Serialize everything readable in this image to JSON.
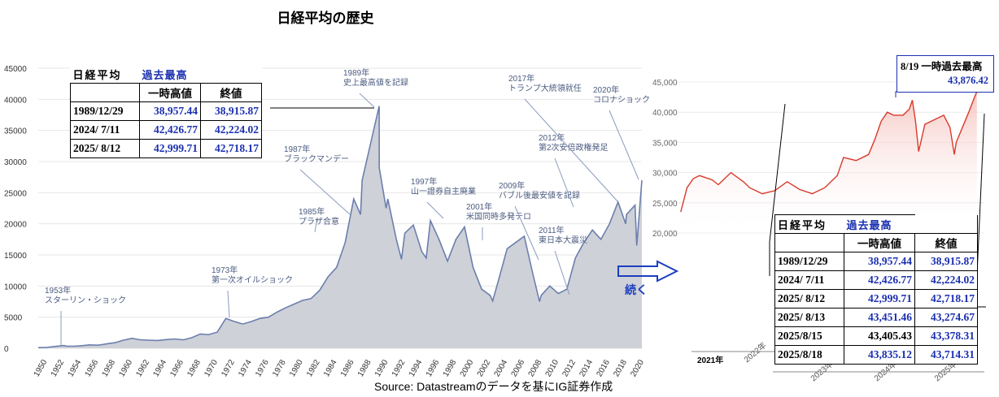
{
  "title": "日経平均の歴史",
  "source": "Source: Datastreamのデータを基にIG証券作成",
  "arrow_label": "続く",
  "callout": {
    "line1": "8/19 一時過去最高",
    "line2": "43,876.42"
  },
  "colors": {
    "long_fill": "#cfd1d8",
    "long_line": "#6b7fad",
    "recent_line": "#d9392a",
    "table_blue": "#1a2fb0"
  },
  "table_left": {
    "title": "日経平均",
    "title_blue": "過去最高",
    "headers": [
      "一時高値",
      "終値"
    ],
    "rows": [
      {
        "date": "1989/12/29",
        "intraday": "38,957.44",
        "close": "38,915.87"
      },
      {
        "date": "2024/ 7/11",
        "intraday": "42,426.77",
        "close": "42,224.02"
      },
      {
        "date": "2025/ 8/12",
        "intraday": "42,999.71",
        "close": "42,718.17"
      }
    ]
  },
  "table_right": {
    "title": "日経平均",
    "title_blue": "過去最高",
    "headers": [
      "一時高値",
      "終値"
    ],
    "rows": [
      {
        "date": "1989/12/29",
        "intraday": "38,957.44",
        "close": "38,915.87"
      },
      {
        "date": "2024/ 7/11",
        "intraday": "42,426.77",
        "close": "42,224.02"
      },
      {
        "date": "2025/ 8/12",
        "intraday": "42,999.71",
        "close": "42,718.17"
      },
      {
        "date": "2025/ 8/13",
        "intraday": "43,451.46",
        "close": "43,274.67"
      },
      {
        "date": "2025/8/15",
        "intraday": "43,405.43",
        "close": "43,378.31"
      },
      {
        "date": "2025/8/18",
        "intraday": "43,835.12",
        "close": "43,714.31"
      }
    ]
  },
  "chart_data": [
    {
      "type": "area",
      "title": "日経平均の歴史",
      "xlim": [
        1950,
        2020.8
      ],
      "ylim": [
        0,
        45000
      ],
      "x_ticks": [
        1950,
        1952,
        1954,
        1956,
        1958,
        1960,
        1962,
        1964,
        1966,
        1968,
        1970,
        1972,
        1974,
        1976,
        1978,
        1980,
        1982,
        1984,
        1986,
        1988,
        1990,
        1992,
        1994,
        1996,
        1998,
        2000,
        2002,
        2004,
        2006,
        2008,
        2010,
        2012,
        2014,
        2016,
        2018,
        2020
      ],
      "y_ticks": [
        0,
        5000,
        10000,
        15000,
        20000,
        25000,
        30000,
        35000,
        40000,
        45000
      ],
      "x": [
        1950,
        1951,
        1952,
        1953,
        1953.3,
        1954,
        1955,
        1956,
        1957,
        1958,
        1959,
        1960,
        1961,
        1962,
        1963,
        1964,
        1965,
        1966,
        1967,
        1968,
        1969,
        1970,
        1971,
        1972,
        1973,
        1974,
        1975,
        1976,
        1977,
        1978,
        1979,
        1980,
        1981,
        1982,
        1983,
        1984,
        1985,
        1986,
        1987,
        1987.8,
        1988,
        1989,
        1989.99,
        1990,
        1990.8,
        1991,
        1992,
        1992.6,
        1993,
        1994,
        1995,
        1995.5,
        1996,
        1997,
        1998,
        1999,
        2000,
        2001,
        2002,
        2003,
        2003.3,
        2004,
        2005,
        2006,
        2007,
        2008,
        2008.8,
        2009,
        2010,
        2011,
        2012,
        2013,
        2014,
        2015,
        2016,
        2017,
        2018,
        2018.9,
        2019,
        2020,
        2020.2,
        2020.8
      ],
      "values": [
        100,
        150,
        300,
        450,
        350,
        320,
        400,
        550,
        500,
        700,
        900,
        1300,
        1600,
        1350,
        1300,
        1250,
        1400,
        1500,
        1350,
        1700,
        2300,
        2200,
        2600,
        4800,
        4300,
        3900,
        4300,
        4800,
        5000,
        5800,
        6500,
        7100,
        7700,
        8000,
        9300,
        11500,
        13000,
        17000,
        24000,
        21500,
        27000,
        33000,
        38915,
        29000,
        22500,
        24000,
        17500,
        14300,
        18500,
        19800,
        15500,
        14500,
        20500,
        17500,
        14000,
        17500,
        19500,
        13000,
        9500,
        8500,
        7600,
        11000,
        16000,
        17000,
        18000,
        12000,
        7500,
        8500,
        10000,
        8800,
        9500,
        14500,
        17000,
        19000,
        17500,
        20000,
        23500,
        20000,
        21500,
        23000,
        16500,
        27000
      ]
    },
    {
      "type": "line",
      "ylim": [
        20000,
        45000
      ],
      "y_ticks": [
        20000,
        25000,
        30000,
        35000,
        40000,
        45000
      ],
      "x_ticks": [
        "2021年",
        "2022年",
        "2023年",
        "2024年",
        "2025年"
      ],
      "x": [
        2020.9,
        2021.0,
        2021.1,
        2021.2,
        2021.4,
        2021.5,
        2021.7,
        2021.9,
        2022.0,
        2022.2,
        2022.4,
        2022.6,
        2022.8,
        2023.0,
        2023.2,
        2023.4,
        2023.5,
        2023.7,
        2023.9,
        2024.0,
        2024.1,
        2024.2,
        2024.3,
        2024.45,
        2024.55,
        2024.6,
        2024.65,
        2024.7,
        2024.8,
        2024.9,
        2025.0,
        2025.1,
        2025.2,
        2025.27,
        2025.3,
        2025.4,
        2025.5,
        2025.6,
        2025.63
      ],
      "values": [
        23500,
        27500,
        29000,
        29500,
        28800,
        28000,
        30000,
        28500,
        27500,
        26500,
        27000,
        28500,
        27200,
        26500,
        27500,
        29500,
        32500,
        32000,
        33000,
        35500,
        38500,
        40000,
        39500,
        39500,
        40500,
        42000,
        38500,
        33500,
        38000,
        38500,
        39000,
        39500,
        37500,
        33000,
        35000,
        37500,
        40000,
        42700,
        43378
      ]
    }
  ],
  "annotations": [
    {
      "label": [
        "1953年",
        "スターリン・ショック"
      ]
    },
    {
      "label": [
        "1973年",
        "第一次オイルショック"
      ]
    },
    {
      "label": [
        "1985年",
        "プラザ合意"
      ]
    },
    {
      "label": [
        "1987年",
        "ブラックマンデー"
      ]
    },
    {
      "label": [
        "1989年",
        "史上最高値を記録"
      ]
    },
    {
      "label": [
        "1997年",
        "山一證券自主廃業"
      ]
    },
    {
      "label": [
        "2001年",
        "米国同時多発テロ"
      ]
    },
    {
      "label": [
        "2009年",
        "バブル後最安値を記録"
      ]
    },
    {
      "label": [
        "2011年",
        "東日本大震災"
      ]
    },
    {
      "label": [
        "2012年",
        "第2次安倍政権発足"
      ]
    },
    {
      "label": [
        "2017年",
        "トランプ大統領就任"
      ]
    },
    {
      "label": [
        "2020年",
        "コロナショック"
      ]
    }
  ]
}
